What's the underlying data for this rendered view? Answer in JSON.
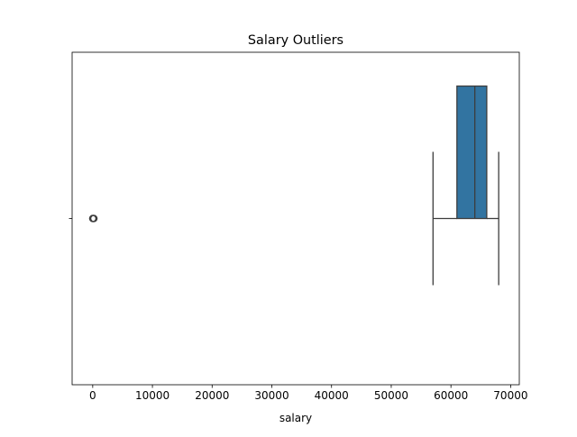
{
  "chart_data": {
    "type": "box",
    "orientation": "horizontal",
    "title": "Salary Outliers",
    "xlabel": "salary",
    "ylabel": "",
    "xlim": [
      -3450,
      71450
    ],
    "xticks": [
      0,
      10000,
      20000,
      30000,
      40000,
      50000,
      60000,
      70000
    ],
    "xtick_labels": [
      "0",
      "10000",
      "20000",
      "30000",
      "40000",
      "50000",
      "60000",
      "70000"
    ],
    "box": {
      "whisker_low": 57000,
      "q1": 61000,
      "median": 64000,
      "q3": 66000,
      "whisker_high": 68000,
      "outliers": [
        0,
        50,
        100,
        200
      ]
    },
    "colors": {
      "box_fill": "#3274a1",
      "line": "#3d3d3d",
      "outlier_edge": "#3d3d3d"
    },
    "grid": false
  }
}
